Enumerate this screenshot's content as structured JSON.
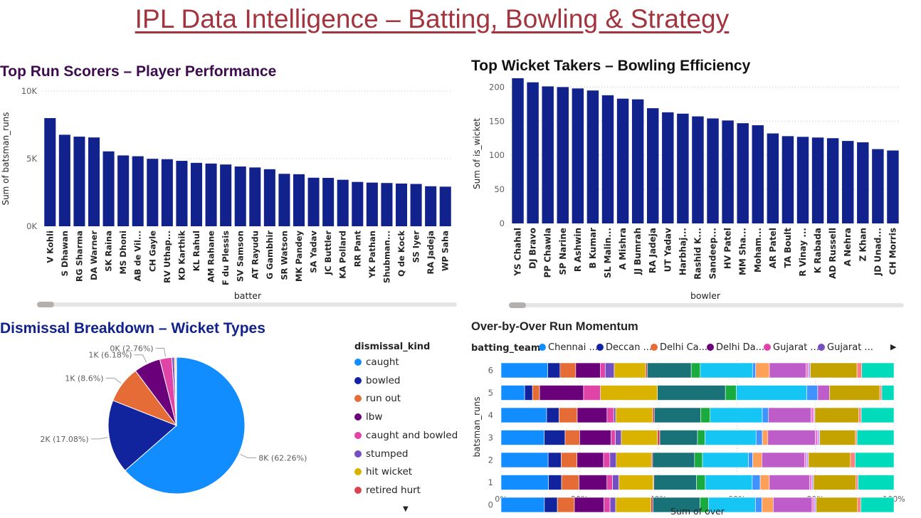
{
  "page": {
    "title": "IPL Data Intelligence – Batting, Bowling & Strategy"
  },
  "colors": {
    "navy": "#12228c",
    "title_maroon": "#a3333c"
  },
  "charts": {
    "runs": {
      "title": "Top Run Scorers – Player Performance",
      "ylabel": "Sum of batsman_runs",
      "xlabel": "batter"
    },
    "wickets": {
      "title": "Top Wicket Takers – Bowling Efficiency",
      "ylabel": "Sum of is_wicket",
      "xlabel": "bowler"
    },
    "dismissal": {
      "title": "Dismissal Breakdown – Wicket Types",
      "legend_title": "dismissal_kind"
    },
    "momentum": {
      "title": "Over-by-Over Run Momentum",
      "legend_title": "batting_team",
      "ylabel": "batsman_runs",
      "xlabel": "Sum of over"
    }
  },
  "chart_data": [
    {
      "id": "runs",
      "type": "bar",
      "title": "Top Run Scorers – Player Performance",
      "xlabel": "batter",
      "ylabel": "Sum of batsman_runs",
      "ylim": [
        0,
        10000
      ],
      "yticks": [
        "0K",
        "5K",
        "10K"
      ],
      "grid": true,
      "categories": [
        "V Kohli",
        "S Dhawan",
        "RG Sharma",
        "DA Warner",
        "SK Raina",
        "MS Dhoni",
        "AB de Vil...",
        "CH Gayle",
        "RV Uthap...",
        "KD Karthik",
        "KL Rahul",
        "AM Rahane",
        "F du Plessis",
        "SV Samson",
        "AT Rayudu",
        "G Gambhir",
        "SR Watson",
        "MK Pandey",
        "SA Yadav",
        "JC Buttler",
        "KA Pollard",
        "RR Pant",
        "YK Pathan",
        "Shubman...",
        "Q de Kock",
        "SS Iyer",
        "RA Jadeja",
        "WP Saha"
      ],
      "values": [
        8000,
        6770,
        6630,
        6570,
        5540,
        5240,
        5180,
        4990,
        4960,
        4840,
        4690,
        4640,
        4570,
        4420,
        4350,
        4220,
        3880,
        3850,
        3590,
        3580,
        3440,
        3280,
        3230,
        3200,
        3160,
        3130,
        2960,
        2930
      ]
    },
    {
      "id": "wickets",
      "type": "bar",
      "title": "Top Wicket Takers – Bowling Efficiency",
      "xlabel": "bowler",
      "ylabel": "Sum of is_wicket",
      "ylim": [
        0,
        215
      ],
      "yticks": [
        "0",
        "50",
        "100",
        "150",
        "200"
      ],
      "grid": true,
      "categories": [
        "YS Chahal",
        "DJ Bravo",
        "PP Chawla",
        "SP Narine",
        "R Ashwin",
        "B Kumar",
        "SL Malin...",
        "A Mishra",
        "JJ Bumrah",
        "RA Jadeja",
        "UT Yadav",
        "Harbhaj...",
        "Rashid K...",
        "Sandeep...",
        "HV Patel",
        "MM Sha...",
        "Moham...",
        "AR Patel",
        "TA Boult",
        "R Vinay ...",
        "K Rabada",
        "AD Russell",
        "A Nehra",
        "Z Khan",
        "JD Unad...",
        "CH Morris"
      ],
      "values": [
        213,
        207,
        201,
        200,
        198,
        195,
        188,
        183,
        182,
        169,
        163,
        161,
        157,
        154,
        151,
        147,
        144,
        132,
        128,
        127,
        126,
        125,
        121,
        119,
        109,
        107
      ]
    },
    {
      "id": "dismissal",
      "type": "pie",
      "title": "Dismissal Breakdown – Wicket Types",
      "legend_title": "dismissal_kind",
      "categories": [
        "caught",
        "bowled",
        "run out",
        "lbw",
        "caught and bowled",
        "stumped",
        "hit wicket",
        "retired hurt"
      ],
      "values": [
        62.26,
        17.08,
        8.6,
        6.18,
        2.76,
        0.6,
        0.3,
        0.2
      ],
      "slice_labels": [
        "8K (62.26%)",
        "2K (17.08%)",
        "1K (8.6%)",
        "1K (6.18%)",
        "0K (2.76%)",
        "",
        "",
        ""
      ],
      "colors": [
        "#118dff",
        "#12239e",
        "#e66c37",
        "#6b007b",
        "#e044a7",
        "#744ec2",
        "#d9b300",
        "#d64550"
      ]
    },
    {
      "id": "momentum",
      "type": "bar",
      "orientation": "horizontal",
      "stacked_percent": true,
      "title": "Over-by-Over Run Momentum",
      "legend_title": "batting_team",
      "ylabel": "batsman_runs",
      "xlabel": "Sum of over",
      "xticks": [
        "0%",
        "20%",
        "40%",
        "60%",
        "80%",
        "100%"
      ],
      "legend_labels": [
        "Chennai ...",
        "Deccan ...",
        "Delhi Ca...",
        "Delhi Da...",
        "Gujarat ...",
        "Gujarat ..."
      ],
      "categories": [
        "6",
        "5",
        "4",
        "3",
        "2",
        "1",
        "0"
      ],
      "colors": [
        "#118dff",
        "#12239e",
        "#e66c37",
        "#6b007b",
        "#e044a7",
        "#744ec2",
        "#d9b300",
        "#d64550",
        "#197278",
        "#1aab40",
        "#15c6f4",
        "#4092ff",
        "#ffa058",
        "#be5dc9",
        "#f472d0",
        "#b5a1ff",
        "#c4a200",
        "#ff8080",
        "#00dbbc"
      ],
      "series_rows": [
        [
          11.9,
          3.1,
          4.0,
          6.3,
          1.2,
          2.3,
          8.0,
          0.4,
          11.2,
          2.3,
          13.3,
          0.8,
          3.5,
          9.3,
          0.6,
          0.5,
          11.9,
          1.2,
          8.2
        ],
        [
          6.0,
          2.0,
          1.8,
          11.2,
          4.3,
          0,
          14.5,
          0,
          17.3,
          2.8,
          17.9,
          2.8,
          0,
          3.0,
          0,
          0,
          12.8,
          0.5,
          3.1
        ],
        [
          11.0,
          3.0,
          4.4,
          7.2,
          1.6,
          0.5,
          8.9,
          0.4,
          11.2,
          2.3,
          12.6,
          1.5,
          0,
          10.3,
          0.6,
          0.3,
          10.6,
          0.6,
          7.9
        ],
        [
          11.0,
          5.3,
          3.7,
          8.0,
          1.1,
          1.5,
          9.2,
          0.6,
          9.6,
          1.9,
          13.0,
          1.6,
          1.4,
          12.1,
          0.6,
          0.5,
          9.1,
          0.4,
          9.4
        ],
        [
          11.9,
          3.3,
          4.0,
          6.7,
          1.6,
          1.6,
          8.9,
          0.3,
          10.6,
          2.0,
          11.6,
          1.1,
          2.3,
          10.8,
          0.5,
          0.5,
          10.6,
          1.2,
          9.8
        ],
        [
          11.9,
          3.3,
          4.4,
          7.0,
          1.4,
          1.6,
          8.6,
          0.2,
          10.7,
          2.2,
          11.8,
          2.0,
          2.3,
          10.1,
          0.5,
          0.5,
          10.6,
          0.6,
          9.0
        ],
        [
          10.7,
          3.2,
          4.2,
          7.3,
          1.5,
          1.4,
          8.7,
          0.5,
          11.6,
          2.1,
          11.6,
          1.6,
          2.8,
          9.6,
          0.5,
          0.5,
          10.2,
          0.8,
          8.2
        ]
      ]
    }
  ]
}
